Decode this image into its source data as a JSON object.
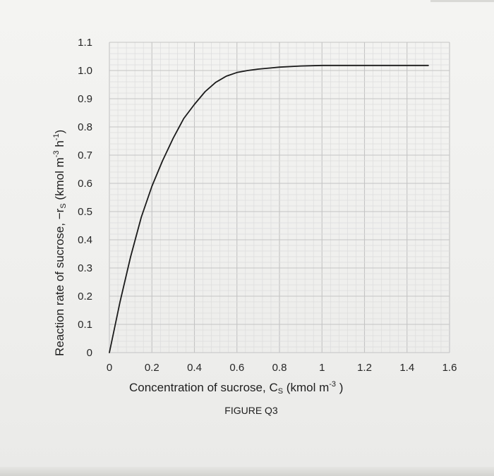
{
  "chart_data": {
    "type": "line",
    "title": "",
    "caption": "FIGURE Q3",
    "xlabel": {
      "text": "Concentration of sucrose, C",
      "subscript": "S",
      "units_prefix": " (kmol m",
      "units_exp": "-3",
      "units_suffix": " )"
    },
    "ylabel": {
      "text": "Reaction rate of sucrose, −r",
      "subscript": "S",
      "units_prefix": " (kmol m",
      "units_exp1": "-3",
      "units_mid": " h",
      "units_exp2": "-1",
      "units_suffix": ")"
    },
    "xlim": [
      0,
      1.6
    ],
    "ylim": [
      0,
      1.1
    ],
    "x_ticks": [
      "0",
      "0.2",
      "0.4",
      "0.6",
      "0.8",
      "1",
      "1.2",
      "1.4",
      "1.6"
    ],
    "y_ticks": [
      "0",
      "0.1",
      "0.2",
      "0.3",
      "0.4",
      "0.5",
      "0.6",
      "0.7",
      "0.8",
      "0.9",
      "1.0",
      "1.1"
    ],
    "grid": true,
    "series": [
      {
        "x": [
          0,
          0.05,
          0.1,
          0.15,
          0.2,
          0.25,
          0.3,
          0.35,
          0.4,
          0.45,
          0.5,
          0.55,
          0.6,
          0.65,
          0.7,
          0.8,
          0.9,
          1.0,
          1.1,
          1.2,
          1.3,
          1.4,
          1.5
        ],
        "y": [
          0,
          0.18,
          0.34,
          0.48,
          0.59,
          0.68,
          0.76,
          0.83,
          0.88,
          0.925,
          0.958,
          0.98,
          0.993,
          1.0,
          1.005,
          1.012,
          1.016,
          1.018,
          1.018,
          1.018,
          1.018,
          1.018,
          1.018
        ]
      }
    ]
  }
}
